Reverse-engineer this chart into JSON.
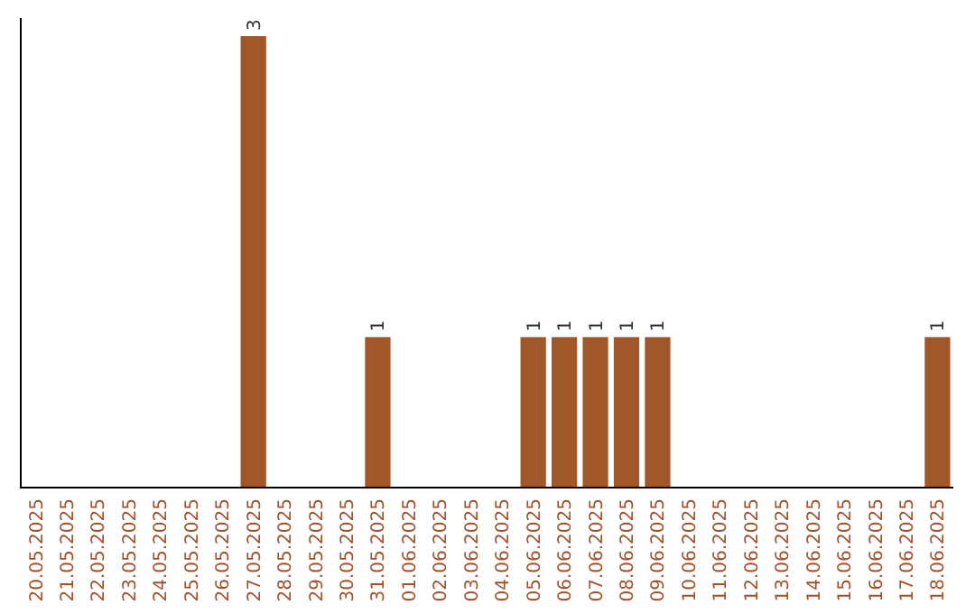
{
  "chart_data": {
    "type": "bar",
    "categories": [
      "20.05.2025",
      "21.05.2025",
      "22.05.2025",
      "23.05.2025",
      "24.05.2025",
      "25.05.2025",
      "26.05.2025",
      "27.05.2025",
      "28.05.2025",
      "29.05.2025",
      "30.05.2025",
      "31.05.2025",
      "01.06.2025",
      "02.06.2025",
      "03.06.2025",
      "04.06.2025",
      "05.06.2025",
      "06.06.2025",
      "07.06.2025",
      "08.06.2025",
      "09.06.2025",
      "10.06.2025",
      "11.06.2025",
      "12.06.2025",
      "13.06.2025",
      "14.06.2025",
      "15.06.2025",
      "16.06.2025",
      "17.06.2025",
      "18.06.2025"
    ],
    "values": [
      0,
      0,
      0,
      0,
      0,
      0,
      0,
      3,
      0,
      0,
      0,
      1,
      0,
      0,
      0,
      0,
      1,
      1,
      1,
      1,
      1,
      0,
      0,
      0,
      0,
      0,
      0,
      0,
      0,
      1
    ],
    "value_labels": [
      null,
      null,
      null,
      null,
      null,
      null,
      null,
      "3",
      null,
      null,
      null,
      "1",
      null,
      null,
      null,
      null,
      "1",
      "1",
      "1",
      "1",
      "1",
      null,
      null,
      null,
      null,
      null,
      null,
      null,
      null,
      "1"
    ],
    "color": "#a0572a"
  }
}
